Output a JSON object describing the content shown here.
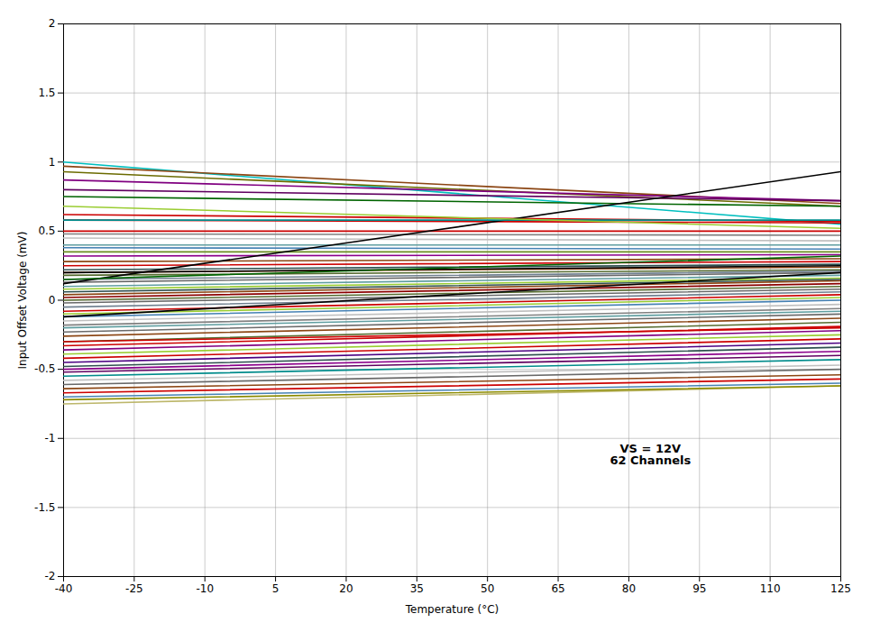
{
  "chart_data": {
    "type": "line",
    "xlabel": "Temperature (°C)",
    "ylabel": "Input Offset Voltage (mV)",
    "x": [
      -40,
      125
    ],
    "xlim": [
      -40,
      125
    ],
    "ylim": [
      -2,
      2
    ],
    "xticks": [
      -40,
      -25,
      -10,
      5,
      20,
      35,
      50,
      65,
      80,
      95,
      110,
      125
    ],
    "yticks": [
      -2,
      -1.5,
      -1,
      -0.5,
      0,
      0.5,
      1,
      1.5,
      2
    ],
    "grid": true,
    "annotations": [
      {
        "text": "VS = 12V\n62 Channels"
      }
    ],
    "series": [
      {
        "color": "#00BFBF",
        "values": [
          1.0,
          0.55
        ]
      },
      {
        "color": "#8B4513",
        "values": [
          0.97,
          0.7
        ]
      },
      {
        "color": "#6B6B00",
        "values": [
          0.93,
          0.68
        ]
      },
      {
        "color": "#800080",
        "values": [
          0.87,
          0.72
        ]
      },
      {
        "color": "#600060",
        "values": [
          0.8,
          0.72
        ]
      },
      {
        "color": "#006400",
        "values": [
          0.75,
          0.68
        ]
      },
      {
        "color": "#CC0000",
        "values": [
          0.62,
          0.57
        ]
      },
      {
        "color": "#CC0000",
        "values": [
          0.58,
          0.56
        ]
      },
      {
        "color": "#CC0000",
        "values": [
          0.5,
          0.5
        ]
      },
      {
        "color": "#808080",
        "values": [
          0.48,
          0.47
        ]
      },
      {
        "color": "#C0C0C0",
        "values": [
          0.45,
          0.43
        ]
      },
      {
        "color": "#5F9EA0",
        "values": [
          0.4,
          0.4
        ]
      },
      {
        "color": "#4682B4",
        "values": [
          0.38,
          0.37
        ]
      },
      {
        "color": "#6B8E23",
        "values": [
          0.35,
          0.35
        ]
      },
      {
        "color": "#8B008B",
        "values": [
          0.32,
          0.33
        ]
      },
      {
        "color": "#8B4513",
        "values": [
          0.28,
          0.3
        ]
      },
      {
        "color": "#CC0000",
        "values": [
          0.25,
          0.28
        ]
      },
      {
        "color": "#2F4F4F",
        "values": [
          0.22,
          0.26
        ]
      },
      {
        "color": "#8B4513",
        "values": [
          0.2,
          0.24
        ]
      },
      {
        "color": "#556B2F",
        "values": [
          0.18,
          0.22
        ]
      },
      {
        "color": "#708090",
        "values": [
          0.15,
          0.21
        ]
      },
      {
        "color": "#696969",
        "values": [
          0.13,
          0.2
        ]
      },
      {
        "color": "#5F9EA0",
        "values": [
          0.1,
          0.18
        ]
      },
      {
        "color": "#9ACD32",
        "values": [
          0.08,
          0.16
        ]
      },
      {
        "color": "#2F4F4F",
        "values": [
          0.06,
          0.15
        ]
      },
      {
        "color": "#8B4513",
        "values": [
          0.04,
          0.14
        ]
      },
      {
        "color": "#8B0000",
        "values": [
          0.02,
          0.12
        ]
      },
      {
        "color": "#556B2F",
        "values": [
          0.0,
          0.1
        ]
      },
      {
        "color": "#696969",
        "values": [
          -0.02,
          0.08
        ]
      },
      {
        "color": "#708090",
        "values": [
          -0.05,
          0.06
        ]
      },
      {
        "color": "#CC0000",
        "values": [
          -0.08,
          0.04
        ]
      },
      {
        "color": "#9ACD32",
        "values": [
          -0.1,
          0.02
        ]
      },
      {
        "color": "#4682B4",
        "values": [
          -0.12,
          0.0
        ]
      },
      {
        "color": "#C0C0C0",
        "values": [
          -0.15,
          -0.03
        ]
      },
      {
        "color": "#808080",
        "values": [
          -0.18,
          -0.06
        ]
      },
      {
        "color": "#5F9EA0",
        "values": [
          -0.2,
          -0.08
        ]
      },
      {
        "color": "#6B6B6B",
        "values": [
          -0.23,
          -0.1
        ]
      },
      {
        "color": "#8B4513",
        "values": [
          -0.26,
          -0.13
        ]
      },
      {
        "color": "#556B2F",
        "values": [
          -0.3,
          -0.16
        ]
      },
      {
        "color": "#CC0000",
        "values": [
          -0.33,
          -0.19
        ]
      },
      {
        "color": "#800080",
        "values": [
          -0.36,
          -0.22
        ]
      },
      {
        "color": "#9ACD32",
        "values": [
          -0.39,
          -0.25
        ]
      },
      {
        "color": "#CC0000",
        "values": [
          -0.42,
          -0.28
        ]
      },
      {
        "color": "#4B0082",
        "values": [
          -0.45,
          -0.31
        ]
      },
      {
        "color": "#2F4F4F",
        "values": [
          -0.48,
          -0.34
        ]
      },
      {
        "color": "#8B008B",
        "values": [
          -0.5,
          -0.37
        ]
      },
      {
        "color": "#600060",
        "values": [
          -0.52,
          -0.4
        ]
      },
      {
        "color": "#008B8B",
        "values": [
          -0.55,
          -0.43
        ]
      },
      {
        "color": "#C0C0C0",
        "values": [
          -0.58,
          -0.47
        ]
      },
      {
        "color": "#696969",
        "values": [
          -0.61,
          -0.5
        ]
      },
      {
        "color": "#8B4513",
        "values": [
          -0.64,
          -0.54
        ]
      },
      {
        "color": "#CC0000",
        "values": [
          -0.67,
          -0.57
        ]
      },
      {
        "color": "#4682B4",
        "values": [
          -0.7,
          -0.6
        ]
      },
      {
        "color": "#000000",
        "values": [
          0.12,
          0.93
        ]
      },
      {
        "color": "#000000",
        "values": [
          -0.12,
          0.2
        ]
      },
      {
        "color": "#000000",
        "values": [
          0.2,
          0.25
        ]
      },
      {
        "color": "#BDB76B",
        "values": [
          -0.75,
          -0.62
        ]
      },
      {
        "color": "#8B8B00",
        "values": [
          -0.72,
          -0.62
        ]
      },
      {
        "color": "#008B8B",
        "values": [
          0.58,
          0.58
        ]
      },
      {
        "color": "#9ACD32",
        "values": [
          0.68,
          0.52
        ]
      },
      {
        "color": "#CC0000",
        "values": [
          -0.3,
          -0.2
        ]
      },
      {
        "color": "#006400",
        "values": [
          0.15,
          0.32
        ]
      }
    ]
  }
}
